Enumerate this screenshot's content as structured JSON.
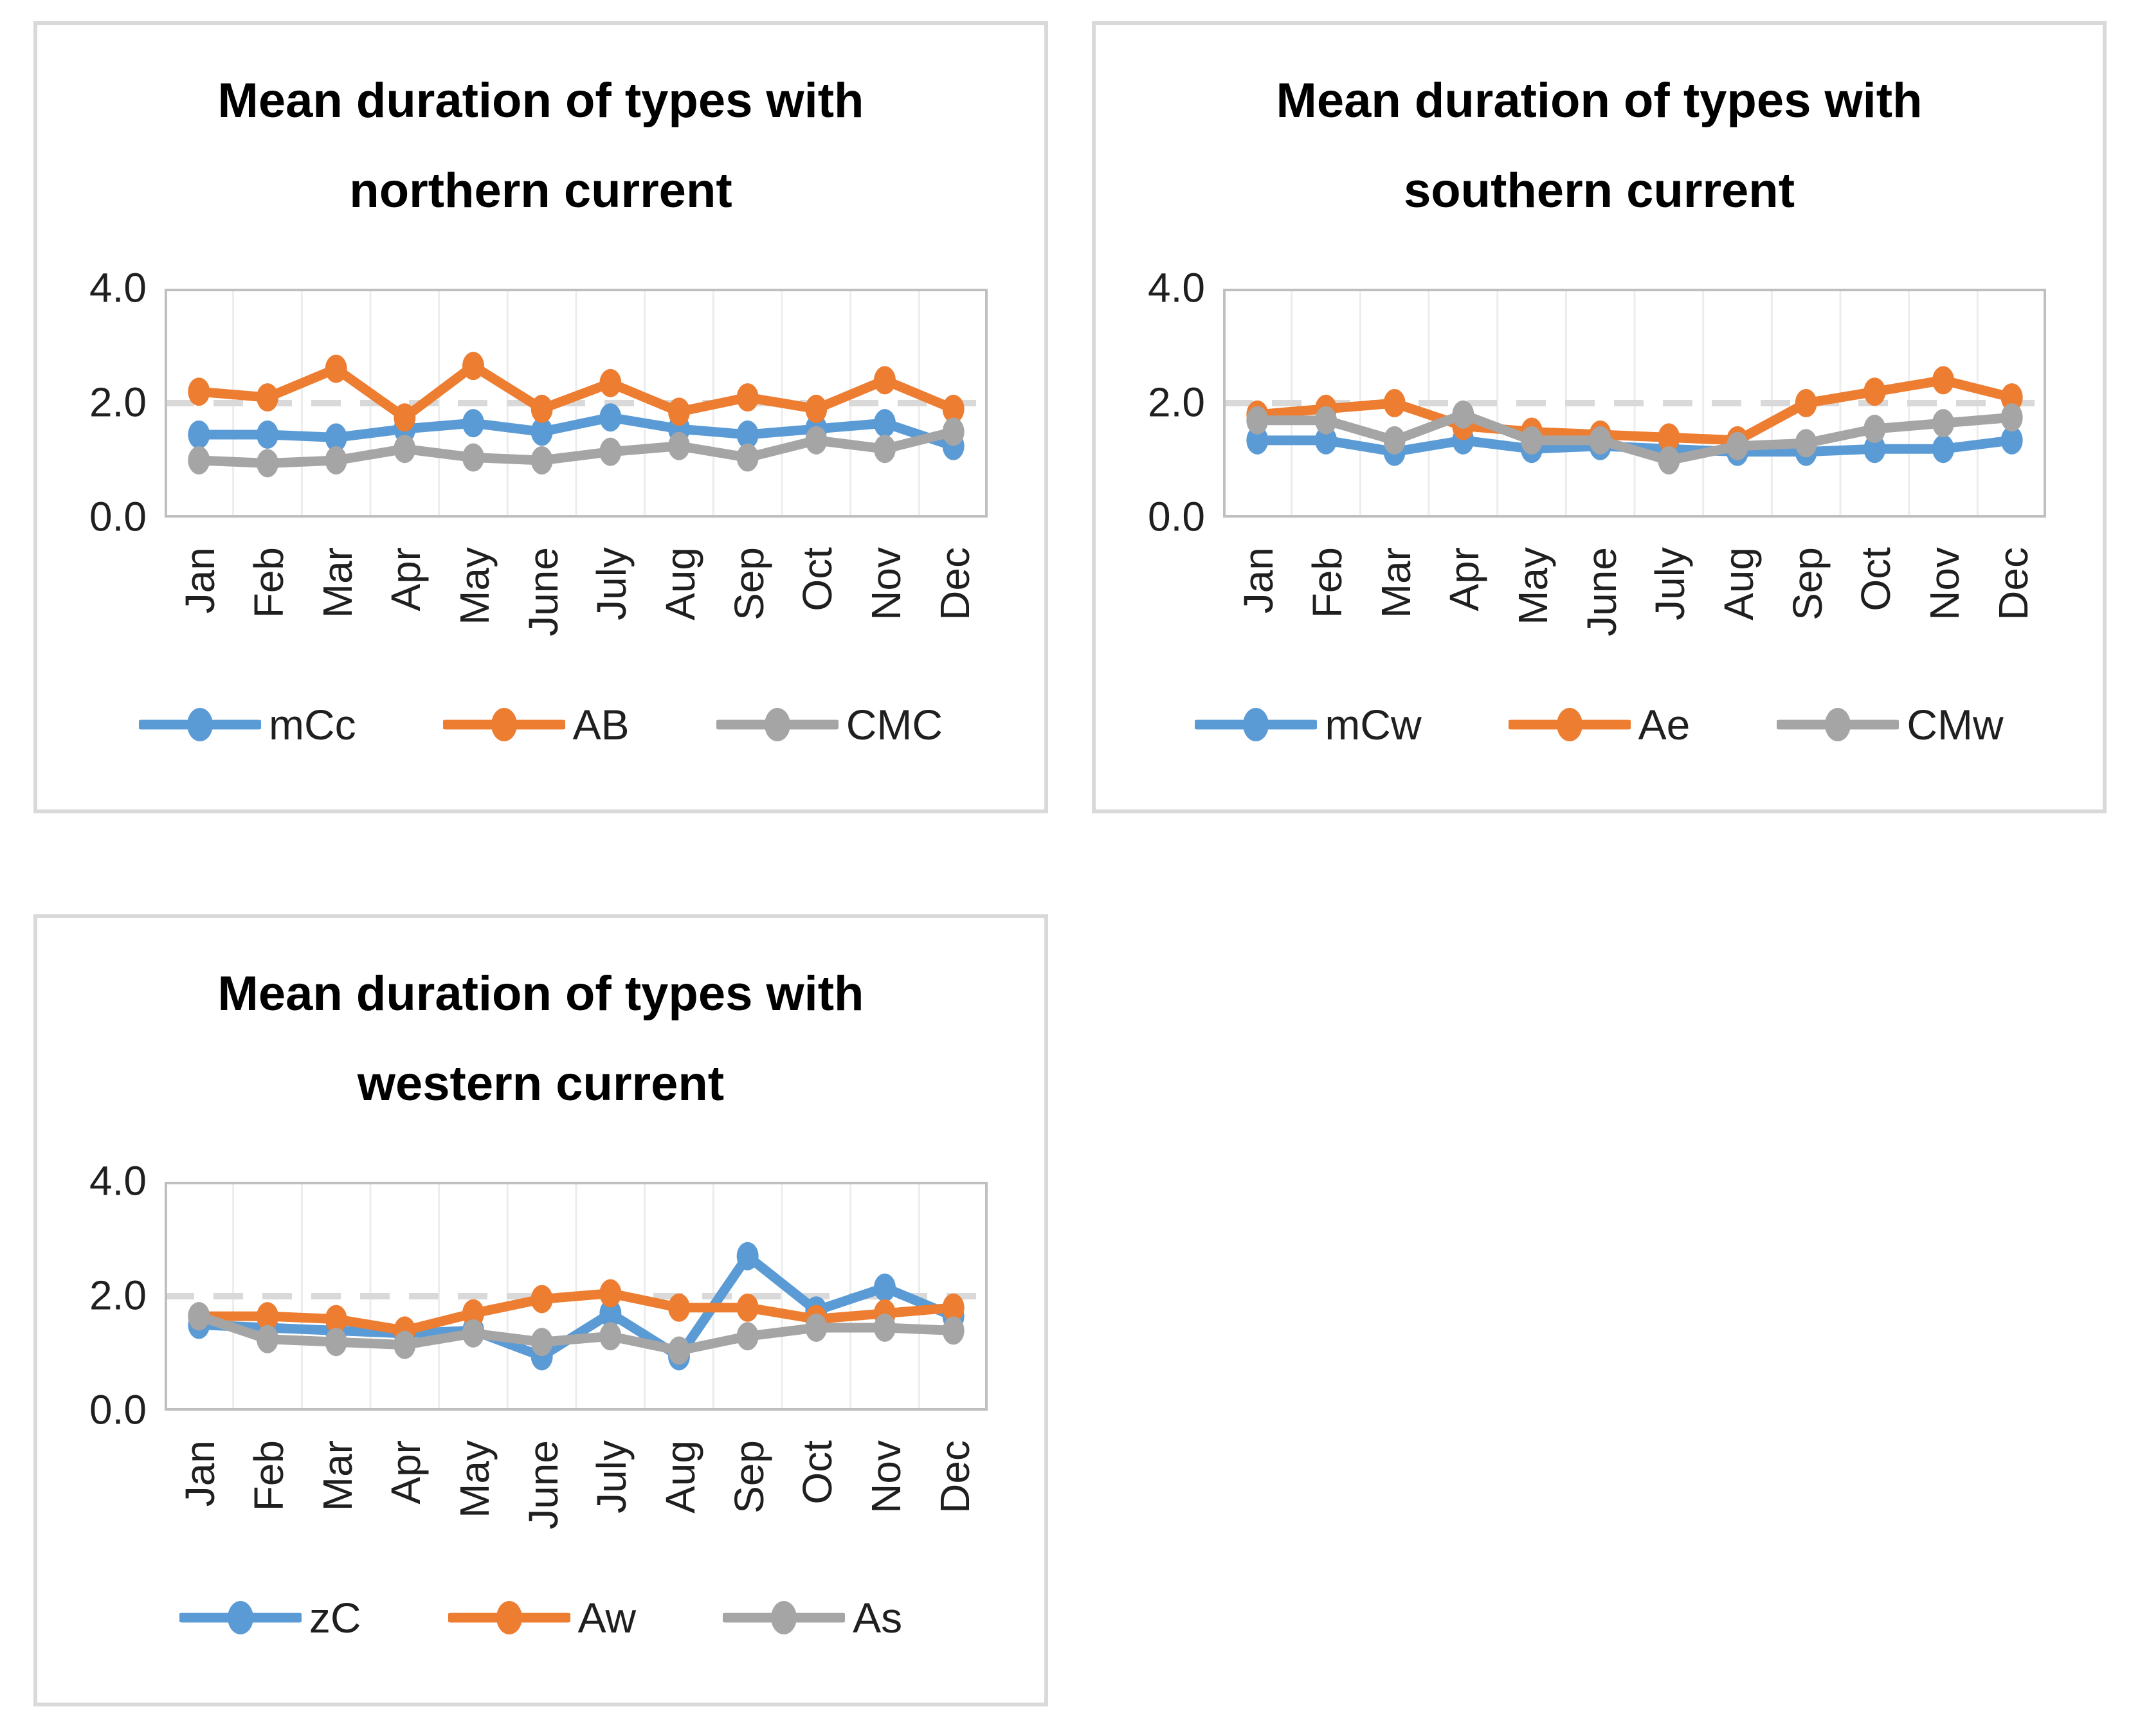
{
  "colors": {
    "series_blue": "#5B9BD5",
    "series_orange": "#ED7D31",
    "series_gray": "#A5A5A5",
    "gridline": "#ECECEC",
    "dashed_gridline": "#D9D9D9",
    "plot_border": "#BFBFBF",
    "panel_border": "#D9D9D9",
    "text": "#1F1F1F"
  },
  "chart_data": [
    {
      "type": "line",
      "title": "Mean duration of types with northern current",
      "title_line1": "Mean duration of types with",
      "title_line2": "northern current",
      "categories": [
        "Jan",
        "Feb",
        "Mar",
        "Apr",
        "May",
        "June",
        "July",
        "Aug",
        "Sep",
        "Oct",
        "Nov",
        "Dec"
      ],
      "ylim": [
        0,
        4
      ],
      "y_tick_labels": [
        "4.0",
        "2.0",
        "0.0"
      ],
      "dashed_gridline_at": 2,
      "legend_position": "bottom",
      "grid": "vertical category gridlines; dashed horizontal gridline at 2.0",
      "series": [
        {
          "name": "mCc",
          "color": "#5B9BD5",
          "values": [
            1.45,
            1.45,
            1.4,
            1.55,
            1.65,
            1.5,
            1.75,
            1.55,
            1.45,
            1.55,
            1.65,
            1.25
          ]
        },
        {
          "name": "AB",
          "color": "#ED7D31",
          "values": [
            2.2,
            2.1,
            2.6,
            1.75,
            2.65,
            1.9,
            2.35,
            1.85,
            2.1,
            1.9,
            2.4,
            1.9
          ]
        },
        {
          "name": "CMC",
          "color": "#A5A5A5",
          "values": [
            1.0,
            0.95,
            1.0,
            1.2,
            1.05,
            1.0,
            1.15,
            1.25,
            1.05,
            1.35,
            1.2,
            1.5
          ]
        }
      ]
    },
    {
      "type": "line",
      "title": "Mean duration of types with southern current",
      "title_line1": "Mean duration of types with",
      "title_line2": "southern current",
      "categories": [
        "Jan",
        "Feb",
        "Mar",
        "Apr",
        "May",
        "June",
        "July",
        "Aug",
        "Sep",
        "Oct",
        "Nov",
        "Dec"
      ],
      "ylim": [
        0,
        4
      ],
      "y_tick_labels": [
        "4.0",
        "2.0",
        "0.0"
      ],
      "dashed_gridline_at": 2,
      "legend_position": "bottom",
      "grid": "vertical category gridlines; dashed horizontal gridline at 2.0",
      "series": [
        {
          "name": "mCw",
          "color": "#5B9BD5",
          "values": [
            1.35,
            1.35,
            1.15,
            1.35,
            1.2,
            1.25,
            1.2,
            1.15,
            1.15,
            1.2,
            1.2,
            1.35
          ]
        },
        {
          "name": "Ae",
          "color": "#ED7D31",
          "values": [
            1.8,
            1.9,
            2.0,
            1.6,
            1.5,
            1.45,
            1.4,
            1.35,
            2.0,
            2.2,
            2.4,
            2.1
          ]
        },
        {
          "name": "CMw",
          "color": "#A5A5A5",
          "values": [
            1.7,
            1.7,
            1.35,
            1.8,
            1.35,
            1.35,
            1.0,
            1.25,
            1.3,
            1.55,
            1.65,
            1.75
          ]
        }
      ]
    },
    {
      "type": "line",
      "title": "Mean duration of types with western current",
      "title_line1": "Mean duration of types with",
      "title_line2": "western current",
      "categories": [
        "Jan",
        "Feb",
        "Mar",
        "Apr",
        "May",
        "June",
        "July",
        "Aug",
        "Sep",
        "Oct",
        "Nov",
        "Dec"
      ],
      "ylim": [
        0,
        4
      ],
      "y_tick_labels": [
        "4.0",
        "2.0",
        "0.0"
      ],
      "dashed_gridline_at": 2,
      "legend_position": "bottom",
      "grid": "vertical category gridlines; dashed horizontal gridline at 2.0",
      "series": [
        {
          "name": "zC",
          "color": "#5B9BD5",
          "values": [
            1.5,
            1.45,
            1.4,
            1.35,
            1.4,
            0.95,
            1.7,
            0.95,
            2.7,
            1.75,
            2.15,
            1.65
          ]
        },
        {
          "name": "Aw",
          "color": "#ED7D31",
          "values": [
            1.65,
            1.65,
            1.6,
            1.4,
            1.7,
            1.95,
            2.05,
            1.8,
            1.8,
            1.6,
            1.7,
            1.8
          ]
        },
        {
          "name": "As",
          "color": "#A5A5A5",
          "values": [
            1.65,
            1.25,
            1.2,
            1.15,
            1.35,
            1.2,
            1.3,
            1.05,
            1.3,
            1.45,
            1.45,
            1.4
          ]
        }
      ]
    }
  ]
}
